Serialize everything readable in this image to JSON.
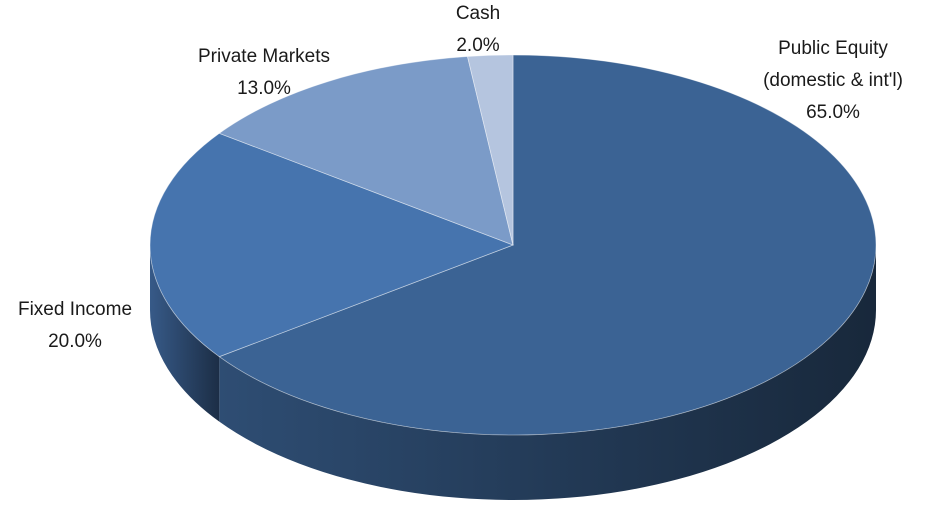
{
  "chart_data": {
    "type": "pie3d",
    "categories": [
      "Public Equity (domestic & int'l)",
      "Fixed Income",
      "Private Markets",
      "Cash"
    ],
    "values": [
      65.0,
      20.0,
      13.0,
      2.0
    ],
    "value_labels": [
      "65.0%",
      "20.0%",
      "13.0%",
      "2.0%"
    ],
    "colors": [
      "#3b6394",
      "#4674ae",
      "#7b9bc8",
      "#b5c5df"
    ],
    "start_angle": 0,
    "direction": "clockwise"
  }
}
